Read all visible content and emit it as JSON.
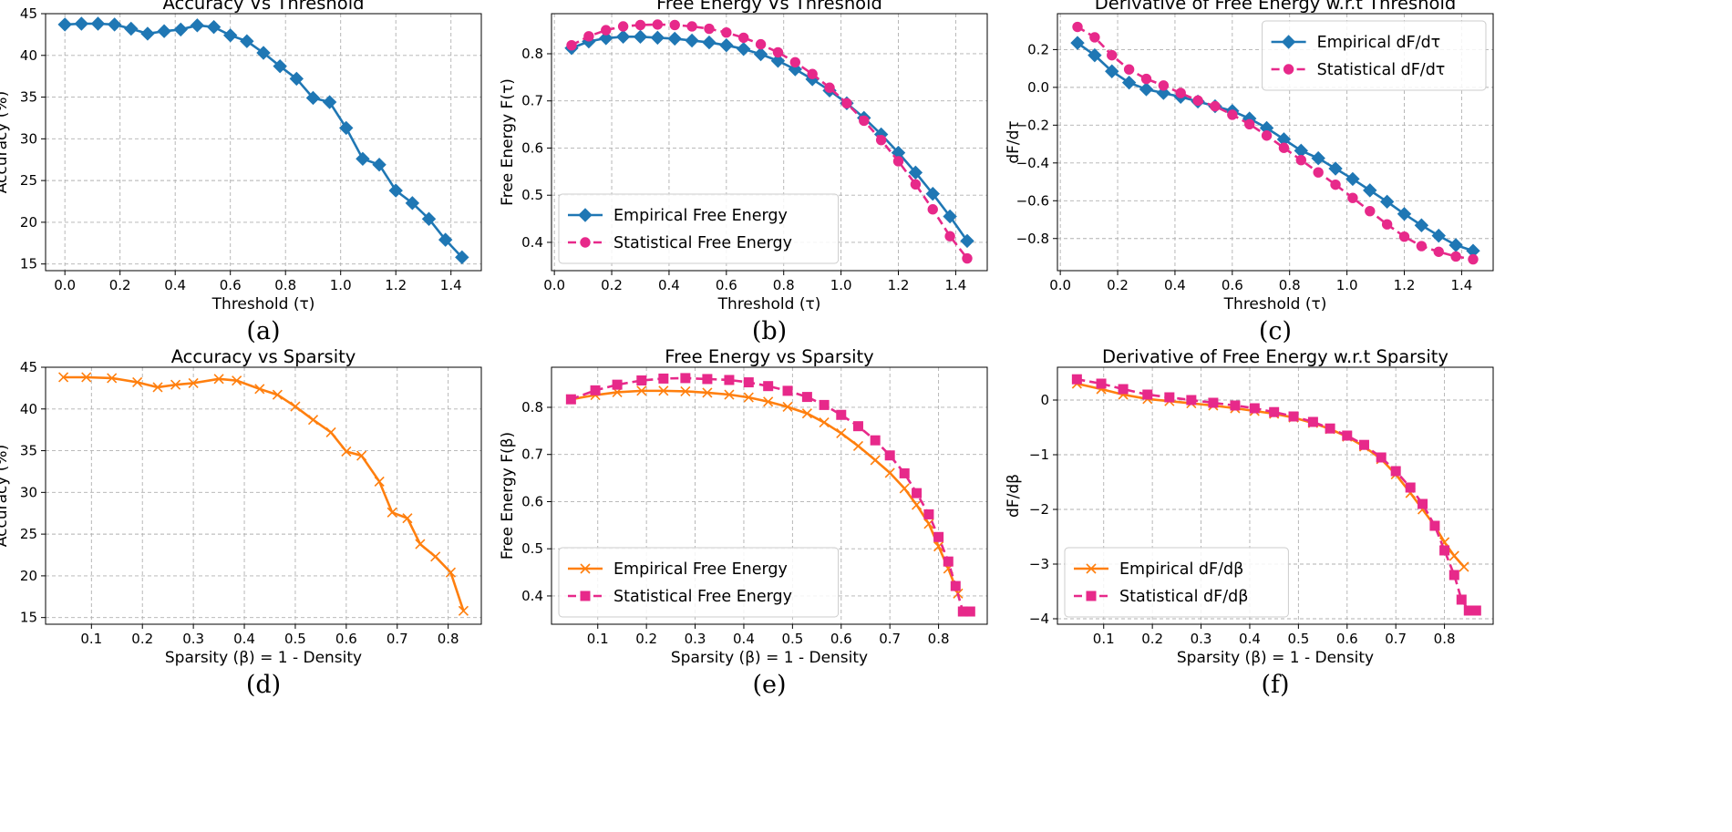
{
  "chart_data": [
    {
      "id": "a",
      "type": "line",
      "title": "Accuracy Vs Threshold",
      "xlabel": "Threshold (τ)",
      "ylabel": "Accuracy (%)",
      "caption": "(a)",
      "xlim": [
        -0.07,
        1.51
      ],
      "ylim": [
        14.2,
        45.0
      ],
      "xticks": [
        0.0,
        0.2,
        0.4,
        0.6,
        0.8,
        1.0,
        1.2,
        1.4
      ],
      "xtick_labels": [
        "0.0",
        "0.2",
        "0.4",
        "0.6",
        "0.8",
        "1.0",
        "1.2",
        "1.4"
      ],
      "yticks": [
        15,
        20,
        25,
        30,
        35,
        40,
        45
      ],
      "ytick_labels": [
        "15",
        "20",
        "25",
        "30",
        "35",
        "40",
        "45"
      ],
      "grid": true,
      "legend": null,
      "series": [
        {
          "name": "Accuracy",
          "color": "#1f77b4",
          "style": "solid",
          "marker": "diamond",
          "x": [
            0.0,
            0.06,
            0.12,
            0.18,
            0.24,
            0.3,
            0.36,
            0.42,
            0.48,
            0.54,
            0.6,
            0.66,
            0.72,
            0.78,
            0.84,
            0.9,
            0.96,
            1.02,
            1.08,
            1.14,
            1.2,
            1.26,
            1.32,
            1.38,
            1.44
          ],
          "y": [
            43.7,
            43.8,
            43.8,
            43.7,
            43.2,
            42.6,
            42.9,
            43.1,
            43.6,
            43.4,
            42.4,
            41.7,
            40.3,
            38.7,
            37.2,
            34.9,
            34.4,
            31.3,
            27.6,
            26.9,
            23.8,
            22.3,
            20.4,
            17.9,
            15.8
          ]
        }
      ]
    },
    {
      "id": "b",
      "type": "line",
      "title": "Free Energy Vs Threshold",
      "xlabel": "Threshold (τ)",
      "ylabel": "Free Energy F(τ)",
      "caption": "(b)",
      "xlim": [
        -0.01,
        1.51
      ],
      "ylim": [
        0.34,
        0.885
      ],
      "xticks": [
        0.0,
        0.2,
        0.4,
        0.6,
        0.8,
        1.0,
        1.2,
        1.4
      ],
      "xtick_labels": [
        "0.0",
        "0.2",
        "0.4",
        "0.6",
        "0.8",
        "1.0",
        "1.2",
        "1.4"
      ],
      "yticks": [
        0.4,
        0.5,
        0.6,
        0.7,
        0.8
      ],
      "ytick_labels": [
        "0.4",
        "0.5",
        "0.6",
        "0.7",
        "0.8"
      ],
      "grid": true,
      "legend": "lower-left",
      "series": [
        {
          "name": "Empirical Free Energy",
          "color": "#1f77b4",
          "style": "solid",
          "marker": "diamond",
          "x": [
            0.06,
            0.12,
            0.18,
            0.24,
            0.3,
            0.36,
            0.42,
            0.48,
            0.54,
            0.6,
            0.66,
            0.72,
            0.78,
            0.84,
            0.9,
            0.96,
            1.02,
            1.08,
            1.14,
            1.2,
            1.26,
            1.32,
            1.38,
            1.44
          ],
          "y": [
            0.812,
            0.826,
            0.833,
            0.836,
            0.836,
            0.834,
            0.832,
            0.828,
            0.824,
            0.818,
            0.81,
            0.799,
            0.785,
            0.767,
            0.746,
            0.722,
            0.695,
            0.664,
            0.629,
            0.59,
            0.548,
            0.503,
            0.455,
            0.403
          ]
        },
        {
          "name": "Statistical Free Energy",
          "color": "#e7298a",
          "style": "dashed",
          "marker": "circle",
          "x": [
            0.06,
            0.12,
            0.18,
            0.24,
            0.3,
            0.36,
            0.42,
            0.48,
            0.54,
            0.6,
            0.66,
            0.72,
            0.78,
            0.84,
            0.9,
            0.96,
            1.02,
            1.08,
            1.14,
            1.2,
            1.26,
            1.32,
            1.38,
            1.44
          ],
          "y": [
            0.818,
            0.837,
            0.85,
            0.858,
            0.861,
            0.862,
            0.861,
            0.858,
            0.853,
            0.845,
            0.834,
            0.82,
            0.803,
            0.782,
            0.757,
            0.728,
            0.695,
            0.658,
            0.617,
            0.572,
            0.523,
            0.47,
            0.413,
            0.366
          ]
        }
      ]
    },
    {
      "id": "c",
      "type": "line",
      "title": "Derivative of Free Energy w.r.t Threshold",
      "xlabel": "Threshold (τ)",
      "ylabel": "dF/dτ",
      "caption": "(c)",
      "xlim": [
        -0.01,
        1.51
      ],
      "ylim": [
        -0.97,
        0.39
      ],
      "xticks": [
        0.0,
        0.2,
        0.4,
        0.6,
        0.8,
        1.0,
        1.2,
        1.4
      ],
      "xtick_labels": [
        "0.0",
        "0.2",
        "0.4",
        "0.6",
        "0.8",
        "1.0",
        "1.2",
        "1.4"
      ],
      "yticks": [
        -0.8,
        -0.6,
        -0.4,
        -0.2,
        0.0,
        0.2
      ],
      "ytick_labels": [
        "−0.8",
        "−0.6",
        "−0.4",
        "−0.2",
        "0.0",
        "0.2"
      ],
      "grid": true,
      "legend": "upper-right",
      "series": [
        {
          "name": "Empirical dF/dτ",
          "color": "#1f77b4",
          "style": "solid",
          "marker": "diamond",
          "x": [
            0.06,
            0.12,
            0.18,
            0.24,
            0.3,
            0.36,
            0.42,
            0.48,
            0.54,
            0.6,
            0.66,
            0.72,
            0.78,
            0.84,
            0.9,
            0.96,
            1.02,
            1.08,
            1.14,
            1.2,
            1.26,
            1.32,
            1.38,
            1.44
          ],
          "y": [
            0.235,
            0.17,
            0.085,
            0.025,
            -0.01,
            -0.03,
            -0.05,
            -0.075,
            -0.1,
            -0.125,
            -0.165,
            -0.215,
            -0.275,
            -0.335,
            -0.375,
            -0.43,
            -0.485,
            -0.545,
            -0.605,
            -0.67,
            -0.73,
            -0.785,
            -0.835,
            -0.865
          ]
        },
        {
          "name": "Statistical dF/dτ",
          "color": "#e7298a",
          "style": "dashed",
          "marker": "circle",
          "x": [
            0.06,
            0.12,
            0.18,
            0.24,
            0.3,
            0.36,
            0.42,
            0.48,
            0.54,
            0.6,
            0.66,
            0.72,
            0.78,
            0.84,
            0.9,
            0.96,
            1.02,
            1.08,
            1.14,
            1.2,
            1.26,
            1.32,
            1.38,
            1.44
          ],
          "y": [
            0.32,
            0.265,
            0.17,
            0.095,
            0.045,
            0.01,
            -0.03,
            -0.07,
            -0.1,
            -0.145,
            -0.195,
            -0.255,
            -0.32,
            -0.385,
            -0.45,
            -0.515,
            -0.585,
            -0.655,
            -0.725,
            -0.79,
            -0.84,
            -0.87,
            -0.895,
            -0.91
          ]
        }
      ]
    },
    {
      "id": "d",
      "type": "line",
      "title": "Accuracy vs Sparsity",
      "xlabel": "Sparsity (β) = 1 - Density",
      "ylabel": "Accuracy (%)",
      "caption": "(d)",
      "xlim": [
        0.01,
        0.865
      ],
      "ylim": [
        14.2,
        45.0
      ],
      "xticks": [
        0.1,
        0.2,
        0.3,
        0.4,
        0.5,
        0.6,
        0.7,
        0.8
      ],
      "xtick_labels": [
        "0.1",
        "0.2",
        "0.3",
        "0.4",
        "0.5",
        "0.6",
        "0.7",
        "0.8"
      ],
      "yticks": [
        15,
        20,
        25,
        30,
        35,
        40,
        45
      ],
      "ytick_labels": [
        "15",
        "20",
        "25",
        "30",
        "35",
        "40",
        "45"
      ],
      "grid": true,
      "legend": null,
      "series": [
        {
          "name": "Accuracy",
          "color": "#ff7f0e",
          "style": "solid",
          "marker": "x",
          "x": [
            0.045,
            0.09,
            0.14,
            0.19,
            0.23,
            0.265,
            0.3,
            0.35,
            0.385,
            0.43,
            0.465,
            0.5,
            0.535,
            0.57,
            0.6,
            0.63,
            0.665,
            0.69,
            0.72,
            0.745,
            0.775,
            0.805,
            0.83
          ],
          "y": [
            43.8,
            43.8,
            43.7,
            43.2,
            42.6,
            42.9,
            43.1,
            43.6,
            43.4,
            42.4,
            41.7,
            40.3,
            38.7,
            37.2,
            34.9,
            34.4,
            31.3,
            27.6,
            26.9,
            23.8,
            22.3,
            20.4,
            15.8
          ]
        }
      ]
    },
    {
      "id": "e",
      "type": "line",
      "title": "Free Energy vs Sparsity",
      "xlabel": "Sparsity (β) = 1 - Density",
      "ylabel": "Free Energy F(β)",
      "caption": "(e)",
      "xlim": [
        0.005,
        0.9
      ],
      "ylim": [
        0.34,
        0.885
      ],
      "xticks": [
        0.1,
        0.2,
        0.3,
        0.4,
        0.5,
        0.6,
        0.7,
        0.8
      ],
      "xtick_labels": [
        "0.1",
        "0.2",
        "0.3",
        "0.4",
        "0.5",
        "0.6",
        "0.7",
        "0.8"
      ],
      "yticks": [
        0.4,
        0.5,
        0.6,
        0.7,
        0.8
      ],
      "ytick_labels": [
        "0.4",
        "0.5",
        "0.6",
        "0.7",
        "0.8"
      ],
      "grid": true,
      "legend": "lower-left",
      "series": [
        {
          "name": "Empirical Free Energy",
          "color": "#ff7f0e",
          "style": "solid",
          "marker": "x",
          "x": [
            0.045,
            0.095,
            0.14,
            0.19,
            0.235,
            0.28,
            0.325,
            0.37,
            0.41,
            0.45,
            0.49,
            0.53,
            0.565,
            0.6,
            0.635,
            0.67,
            0.7,
            0.73,
            0.755,
            0.78,
            0.8,
            0.82,
            0.84
          ],
          "y": [
            0.817,
            0.826,
            0.832,
            0.835,
            0.835,
            0.834,
            0.831,
            0.827,
            0.821,
            0.812,
            0.801,
            0.787,
            0.768,
            0.745,
            0.718,
            0.688,
            0.661,
            0.628,
            0.593,
            0.553,
            0.505,
            0.458,
            0.405
          ]
        },
        {
          "name": "Statistical Free Energy",
          "color": "#e7298a",
          "style": "dashed",
          "marker": "square",
          "x": [
            0.045,
            0.095,
            0.14,
            0.19,
            0.235,
            0.28,
            0.325,
            0.37,
            0.41,
            0.45,
            0.49,
            0.53,
            0.565,
            0.6,
            0.635,
            0.67,
            0.7,
            0.73,
            0.755,
            0.78,
            0.8,
            0.82,
            0.835,
            0.85,
            0.865
          ],
          "y": [
            0.817,
            0.836,
            0.848,
            0.857,
            0.861,
            0.862,
            0.86,
            0.858,
            0.853,
            0.845,
            0.835,
            0.822,
            0.805,
            0.784,
            0.76,
            0.73,
            0.698,
            0.66,
            0.618,
            0.573,
            0.525,
            0.473,
            0.421,
            0.367,
            0.367
          ]
        }
      ]
    },
    {
      "id": "f",
      "type": "line",
      "title": "Derivative of Free Energy w.r.t Sparsity",
      "xlabel": "Sparsity (β) = 1 - Density",
      "ylabel": "dF/dβ",
      "caption": "(f)",
      "xlim": [
        0.005,
        0.9
      ],
      "ylim": [
        -4.1,
        0.6
      ],
      "xticks": [
        0.1,
        0.2,
        0.3,
        0.4,
        0.5,
        0.6,
        0.7,
        0.8
      ],
      "xtick_labels": [
        "0.1",
        "0.2",
        "0.3",
        "0.4",
        "0.5",
        "0.6",
        "0.7",
        "0.8"
      ],
      "yticks": [
        -4,
        -3,
        -2,
        -1,
        0
      ],
      "ytick_labels": [
        "−4",
        "−3",
        "−2",
        "−1",
        "0"
      ],
      "grid": true,
      "legend": "lower-left",
      "series": [
        {
          "name": "Empirical dF/dβ",
          "color": "#ff7f0e",
          "style": "solid",
          "marker": "x",
          "x": [
            0.045,
            0.095,
            0.14,
            0.19,
            0.235,
            0.28,
            0.325,
            0.37,
            0.41,
            0.45,
            0.49,
            0.53,
            0.565,
            0.6,
            0.635,
            0.67,
            0.7,
            0.73,
            0.755,
            0.78,
            0.8,
            0.82,
            0.84
          ],
          "y": [
            0.3,
            0.2,
            0.1,
            0.02,
            -0.02,
            -0.06,
            -0.1,
            -0.15,
            -0.2,
            -0.25,
            -0.32,
            -0.42,
            -0.53,
            -0.67,
            -0.85,
            -1.08,
            -1.36,
            -1.7,
            -2.0,
            -2.3,
            -2.6,
            -2.85,
            -3.05
          ]
        },
        {
          "name": "Statistical dF/dβ",
          "color": "#e7298a",
          "style": "dashed",
          "marker": "square",
          "x": [
            0.045,
            0.095,
            0.14,
            0.19,
            0.235,
            0.28,
            0.325,
            0.37,
            0.41,
            0.45,
            0.49,
            0.53,
            0.565,
            0.6,
            0.635,
            0.67,
            0.7,
            0.73,
            0.755,
            0.78,
            0.8,
            0.82,
            0.835,
            0.85,
            0.865
          ],
          "y": [
            0.38,
            0.3,
            0.2,
            0.1,
            0.05,
            0.0,
            -0.05,
            -0.1,
            -0.15,
            -0.22,
            -0.3,
            -0.4,
            -0.52,
            -0.65,
            -0.82,
            -1.05,
            -1.3,
            -1.6,
            -1.9,
            -2.3,
            -2.75,
            -3.2,
            -3.65,
            -3.85,
            -3.85
          ]
        }
      ]
    }
  ]
}
